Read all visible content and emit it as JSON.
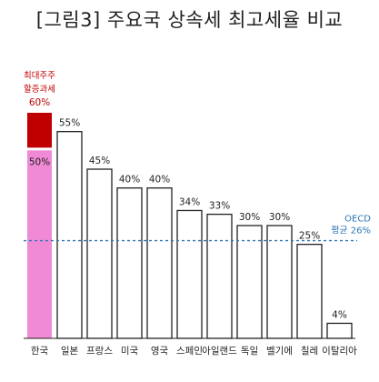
{
  "title": "[그림3] 주요국 상속세 최고세율 비교",
  "chart_data": {
    "type": "bar",
    "title": "[그림3] 주요국 상속세 최고세율 비교",
    "categories": [
      "한국",
      "일본",
      "프랑스",
      "미국",
      "영국",
      "스페인",
      "아일랜드",
      "독일",
      "벨기에",
      "칠레",
      "이탈리아"
    ],
    "values": [
      50,
      55,
      45,
      40,
      40,
      34,
      33,
      30,
      30,
      25,
      4
    ],
    "value_labels": [
      "50%",
      "55%",
      "45%",
      "40%",
      "40%",
      "34%",
      "33%",
      "30%",
      "30%",
      "25%",
      "4%"
    ],
    "ylim": [
      0,
      60
    ],
    "grid": false,
    "korea_surcharge": {
      "category": "한국",
      "total": 60,
      "label_lines": [
        "최대주주",
        "할증과세",
        "60%"
      ],
      "color": "#c00000"
    },
    "reference_line": {
      "value": 26,
      "label_lines": [
        "OECD",
        "평균 26%"
      ],
      "color": "#2e75b6",
      "style": "dashed"
    },
    "colors": {
      "korea_base": "#f08ad6",
      "korea_surcharge": "#c00000",
      "others_fill": "#ffffff",
      "others_stroke": "#222222",
      "reference": "#2e75b6"
    }
  }
}
